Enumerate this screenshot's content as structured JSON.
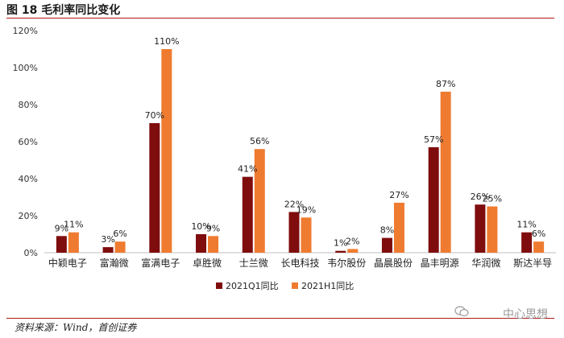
{
  "figure": {
    "title": "图  18  毛利率同比变化",
    "source": "资料来源：Wind，首创证券",
    "watermark": "中心思想",
    "watermark_icon": "wechat-icon"
  },
  "colors": {
    "series1": "#7f0d0d",
    "series2": "#ef7b30",
    "axis": "#bfbfbf",
    "rule": "#b01818"
  },
  "chart_data": {
    "type": "bar",
    "title": "",
    "xlabel": "",
    "ylabel": "",
    "categories": [
      "中颖电子",
      "富瀚微",
      "富满电子",
      "卓胜微",
      "士兰微",
      "长电科技",
      "韦尔股份",
      "晶晨股份",
      "晶丰明源",
      "华润微",
      "斯达半导"
    ],
    "series": [
      {
        "name": "2021Q1同比",
        "values": [
          9,
          3,
          70,
          10,
          41,
          22,
          1,
          8,
          57,
          26,
          11
        ],
        "labels": [
          "9%",
          "3%",
          "70%",
          "10%",
          "41%",
          "22%",
          "1%",
          "8%",
          "57%",
          "26%",
          "11%"
        ]
      },
      {
        "name": "2021H1同比",
        "values": [
          11,
          6,
          110,
          9,
          56,
          19,
          2,
          27,
          87,
          25,
          6
        ],
        "labels": [
          "11%",
          "6%",
          "110%",
          "9%",
          "56%",
          "19%",
          "2%",
          "27%",
          "87%",
          "25%",
          "6%"
        ]
      }
    ],
    "ylim": [
      0,
      120
    ],
    "yticks": [
      0,
      20,
      40,
      60,
      80,
      100,
      120
    ],
    "ytick_labels": [
      "0%",
      "20%",
      "40%",
      "60%",
      "80%",
      "100%",
      "120%"
    ],
    "grid": false,
    "legend": "bottom"
  }
}
